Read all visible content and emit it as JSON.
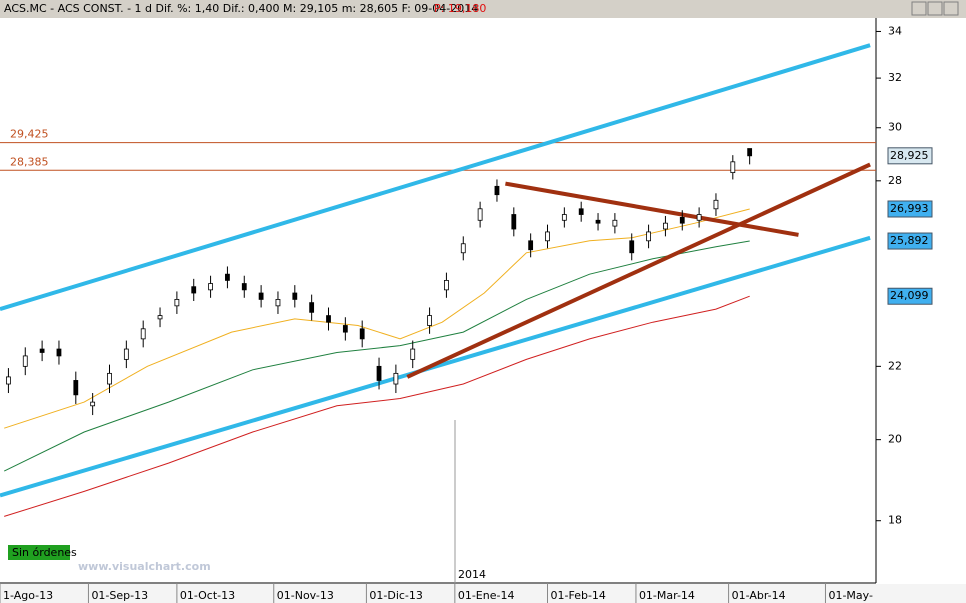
{
  "chart_data": {
    "type": "candlestick",
    "title": "ACS.MC - ACS CONST. - 1 d  Dif. %: 1,40  Dif.: 0,400  M: 29,105  m: 28,605  F: 09-04-2014",
    "title_price": "P: 19,180",
    "year_label": "2014",
    "status": "Sin órdenes",
    "watermark": "www.visualchart.com",
    "log_scale": true,
    "xlim": [
      0,
      208
    ],
    "ylim": [
      16.6,
      34.6
    ],
    "yticks": [
      18,
      20,
      22,
      28,
      30,
      32,
      34
    ],
    "xticks": [
      {
        "value": 0,
        "label": "1-Ago-13"
      },
      {
        "value": 21,
        "label": "01-Sep-13"
      },
      {
        "value": 42,
        "label": "01-Oct-13"
      },
      {
        "value": 65,
        "label": "01-Nov-13"
      },
      {
        "value": 87,
        "label": "01-Dic-13"
      },
      {
        "value": 108,
        "label": "01-Ene-14"
      },
      {
        "value": 130,
        "label": "01-Feb-14"
      },
      {
        "value": 151,
        "label": "01-Mar-14"
      },
      {
        "value": 173,
        "label": "01-Abr-14"
      },
      {
        "value": 196,
        "label": "01-May-"
      }
    ],
    "candles": {
      "x": [
        2,
        6,
        10,
        14,
        18,
        22,
        26,
        30,
        34,
        38,
        42,
        46,
        50,
        54,
        58,
        62,
        66,
        70,
        74,
        78,
        82,
        86,
        90,
        94,
        98,
        102,
        106,
        110,
        114,
        118,
        122,
        126,
        130,
        134,
        138,
        142,
        146,
        150,
        154,
        158,
        162,
        166,
        170,
        174,
        178
      ],
      "open": [
        21.5,
        22.0,
        22.5,
        22.5,
        21.6,
        20.9,
        21.5,
        22.2,
        22.8,
        23.4,
        23.8,
        24.4,
        24.3,
        24.8,
        24.5,
        24.2,
        23.8,
        24.2,
        23.9,
        23.5,
        23.2,
        23.1,
        22.0,
        21.5,
        22.2,
        23.2,
        24.3,
        25.5,
        26.6,
        27.8,
        26.8,
        25.9,
        25.9,
        26.6,
        27.0,
        26.6,
        26.4,
        25.9,
        25.9,
        26.3,
        26.7,
        26.6,
        27.0,
        28.3,
        29.2
      ],
      "high": [
        21.95,
        22.55,
        22.75,
        22.75,
        21.85,
        21.25,
        22.05,
        22.75,
        23.35,
        23.75,
        24.25,
        24.65,
        24.75,
        25.05,
        24.75,
        24.45,
        24.25,
        24.45,
        24.15,
        23.75,
        23.45,
        23.35,
        22.25,
        22.05,
        22.75,
        23.75,
        24.85,
        26.05,
        27.25,
        28.05,
        27.05,
        26.15,
        26.45,
        27.05,
        27.25,
        26.85,
        26.85,
        26.15,
        26.45,
        26.75,
        26.95,
        27.05,
        27.55,
        28.95,
        29.105
      ],
      "low": [
        21.25,
        21.75,
        22.15,
        22.05,
        20.95,
        20.65,
        21.25,
        21.95,
        22.55,
        23.15,
        23.55,
        23.95,
        24.05,
        24.35,
        24.05,
        23.75,
        23.55,
        23.75,
        23.35,
        23.05,
        22.75,
        22.55,
        21.35,
        21.25,
        21.95,
        22.95,
        24.05,
        25.25,
        26.35,
        27.25,
        26.05,
        25.35,
        25.65,
        26.35,
        26.55,
        26.25,
        26.15,
        25.25,
        25.65,
        26.05,
        26.25,
        26.35,
        26.75,
        28.05,
        28.605
      ],
      "close": [
        21.7,
        22.3,
        22.4,
        22.3,
        21.2,
        21.0,
        21.8,
        22.5,
        23.1,
        23.5,
        24.0,
        24.2,
        24.5,
        24.6,
        24.3,
        24.0,
        24.0,
        24.0,
        23.6,
        23.3,
        23.0,
        22.8,
        21.6,
        21.8,
        22.5,
        23.5,
        24.6,
        25.8,
        27.0,
        27.5,
        26.3,
        25.6,
        26.2,
        26.8,
        26.8,
        26.5,
        26.6,
        25.5,
        26.2,
        26.5,
        26.5,
        26.8,
        27.3,
        28.7,
        28.925
      ],
      "up_color": "#ffffff",
      "down_color": "#000000"
    },
    "series": [
      {
        "color": "#f0b020",
        "x": [
          1,
          20,
          35,
          55,
          70,
          85,
          95,
          105,
          115,
          125,
          140,
          150,
          165,
          178
        ],
        "values": [
          20.3,
          21.0,
          22.0,
          23.0,
          23.4,
          23.2,
          22.8,
          23.3,
          24.2,
          25.5,
          25.9,
          26.0,
          26.5,
          26.993
        ]
      },
      {
        "color": "#208040",
        "x": [
          1,
          20,
          40,
          60,
          80,
          95,
          110,
          125,
          140,
          155,
          170,
          178
        ],
        "values": [
          19.2,
          20.2,
          21.0,
          21.9,
          22.4,
          22.6,
          23.0,
          24.0,
          24.8,
          25.3,
          25.7,
          25.892
        ]
      },
      {
        "color": "#d02020",
        "x": [
          1,
          20,
          40,
          60,
          80,
          95,
          110,
          125,
          140,
          155,
          170,
          178
        ],
        "values": [
          18.1,
          18.7,
          19.4,
          20.2,
          20.9,
          21.1,
          21.5,
          22.2,
          22.8,
          23.3,
          23.7,
          24.099
        ]
      }
    ],
    "trend_lines": [
      {
        "color": "#30b8e8",
        "x": [
          0,
          206.6
        ],
        "values": [
          23.7,
          33.4
        ]
      },
      {
        "color": "#30b8e8",
        "x": [
          0,
          206.6
        ],
        "values": [
          18.6,
          26.0
        ]
      },
      {
        "color": "#a03010",
        "x": [
          96.7,
          206.6
        ],
        "values": [
          21.7,
          28.6
        ]
      },
      {
        "color": "#a03010",
        "x": [
          120,
          189.6
        ],
        "values": [
          27.9,
          26.1
        ]
      }
    ],
    "levels": [
      {
        "value": 29.425,
        "label": "29,425"
      },
      {
        "value": 28.385,
        "label": "28,385"
      }
    ],
    "level_color": "#c05020",
    "axis_markers": [
      {
        "value": 28.925,
        "label": "28,925",
        "color": "#d8e8f0"
      },
      {
        "value": 26.993,
        "label": "26,993",
        "color": "#40b0f0"
      },
      {
        "value": 25.892,
        "label": "25,892",
        "color": "#40b0f0"
      },
      {
        "value": 24.099,
        "label": "24,099",
        "color": "#40b0f0"
      }
    ]
  }
}
